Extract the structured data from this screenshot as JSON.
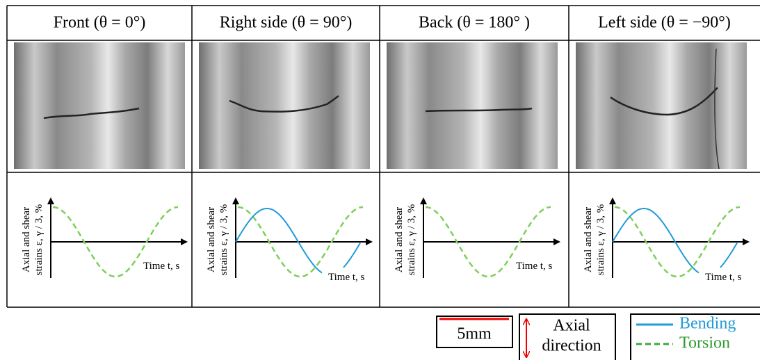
{
  "table": {
    "headers": [
      "Front (θ = 0°)",
      "Right side (θ = 90°)",
      "Back (θ = 180° )",
      "Left side (θ = −90°)"
    ]
  },
  "plot_labels": {
    "y_label": [
      "Axial and shear",
      "strains ε, γ / 3,  %"
    ],
    "x_label": "Time t, s"
  },
  "legend": {
    "scale_bar": "5mm",
    "direction": [
      "Axial",
      "direction"
    ],
    "bending": "Bending",
    "torsion": "Torsion"
  }
}
